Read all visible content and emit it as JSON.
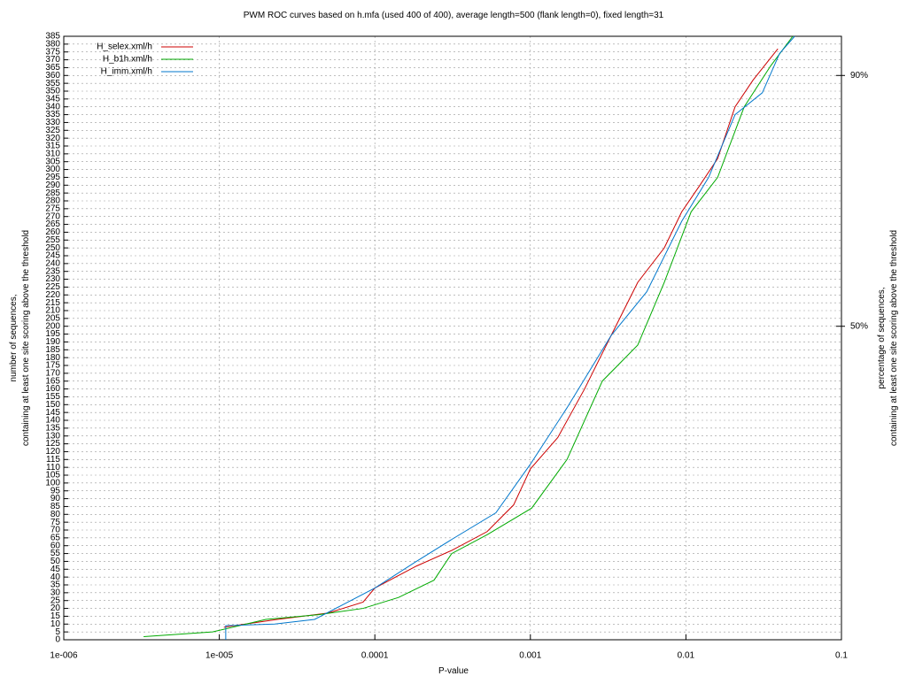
{
  "chart_data": {
    "type": "line",
    "title": "PWM ROC curves based on h.mfa (used 400 of 400), average length=500 (flank length=0), fixed length=31",
    "xlabel": "P-value",
    "ylabel": [
      "number of sequences,",
      "containing at least one site scoring above the threshold"
    ],
    "y2label": [
      "percentage of sequences,",
      "containing at least one site scoring above the threshold"
    ],
    "xscale": "log",
    "xlim": [
      1e-06,
      0.1
    ],
    "xticks": [
      {
        "value": 1e-06,
        "label": "1e-006"
      },
      {
        "value": 1e-05,
        "label": "1e-005"
      },
      0.0001,
      0.001,
      0.01,
      0.1
    ],
    "ylim": [
      0,
      385
    ],
    "yticks": [
      0,
      5,
      10,
      15,
      20,
      25,
      30,
      35,
      40,
      45,
      50,
      55,
      60,
      65,
      70,
      75,
      80,
      85,
      90,
      95,
      100,
      105,
      110,
      115,
      120,
      125,
      130,
      135,
      140,
      145,
      150,
      155,
      160,
      165,
      170,
      175,
      180,
      185,
      190,
      195,
      200,
      205,
      210,
      215,
      220,
      225,
      230,
      235,
      240,
      245,
      250,
      255,
      260,
      265,
      270,
      275,
      280,
      285,
      290,
      295,
      300,
      305,
      310,
      315,
      320,
      325,
      330,
      335,
      340,
      345,
      350,
      355,
      360,
      365,
      370,
      375,
      380,
      385
    ],
    "y2lim": [
      0,
      96.25
    ],
    "y2ticks": [
      {
        "value": 50,
        "label": "50%"
      },
      {
        "value": 90,
        "label": "90%"
      }
    ],
    "grid": true,
    "legend": "top-left",
    "series": [
      {
        "name": "H_selex.xml/h",
        "color": "#cc0000",
        "x": [
          1.07e-05,
          2.36e-05,
          4.98e-05,
          8.4e-05,
          0.0001,
          0.000185,
          0.000312,
          0.000527,
          0.00078,
          0.001,
          0.0015,
          0.00223,
          0.0033,
          0.0049,
          0.00726,
          0.0094,
          0.0123,
          0.016,
          0.0207,
          0.027,
          0.039
        ],
        "values": [
          8,
          13,
          17,
          24,
          33,
          47,
          57,
          69,
          86,
          109,
          129,
          160,
          194,
          228,
          250,
          273,
          290,
          307,
          340,
          357,
          377
        ]
      },
      {
        "name": "H_b1h.xml/h",
        "color": "#00aa00",
        "x": [
          3.26e-06,
          9.05e-06,
          1.99e-05,
          4.37e-05,
          8.4e-05,
          0.000142,
          0.00024,
          0.000312,
          0.000527,
          0.00102,
          0.00172,
          0.0029,
          0.0049,
          0.00726,
          0.0108,
          0.016,
          0.0237,
          0.035,
          0.0486
        ],
        "values": [
          2,
          5,
          13,
          16,
          20,
          27,
          38,
          55,
          67,
          84,
          115,
          165,
          188,
          228,
          273,
          295,
          340,
          366,
          385
        ]
      },
      {
        "name": "H_imm.xml/h",
        "color": "#0077cc",
        "x": [
          1.1e-05,
          1.1e-05,
          2.27e-05,
          4.1e-05,
          5.6e-05,
          0.0001,
          0.000185,
          0.000312,
          0.0006,
          0.001,
          0.00172,
          0.0033,
          0.0056,
          0.0094,
          0.014,
          0.0207,
          0.031,
          0.04,
          0.05
        ],
        "values": [
          0,
          9,
          10,
          13,
          20,
          33,
          50,
          64,
          81,
          112,
          148,
          194,
          222,
          267,
          295,
          335,
          349,
          374,
          385
        ]
      }
    ]
  }
}
